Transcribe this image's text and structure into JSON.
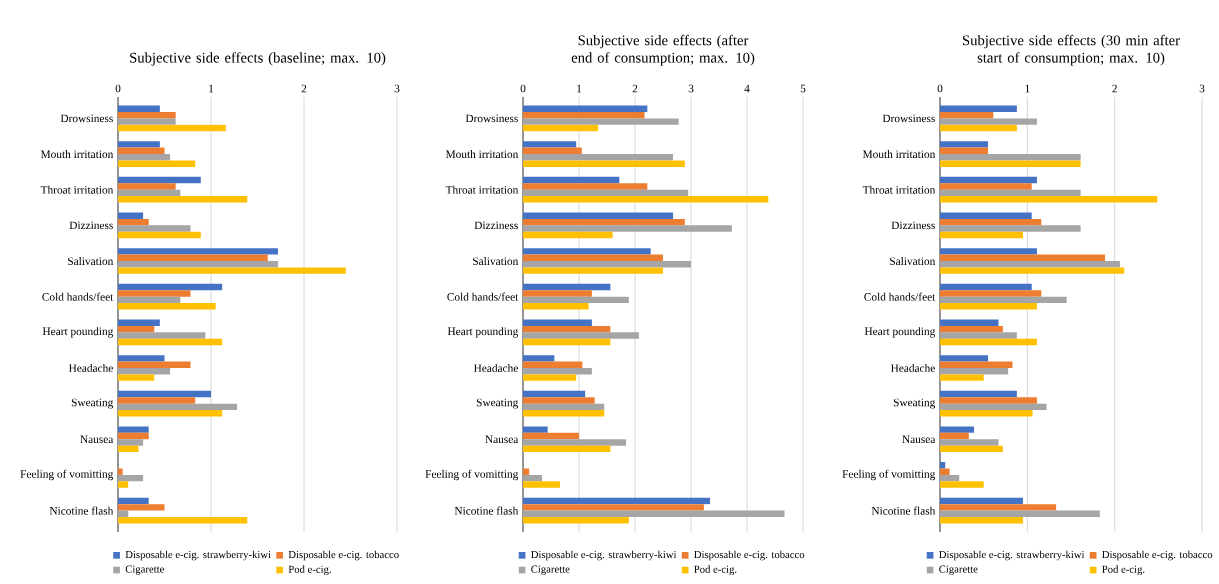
{
  "chart_data": [
    {
      "type": "bar",
      "orientation": "horizontal",
      "title": "Subjective side effects (baseline; max. 10)",
      "categories": [
        "Drowsiness",
        "Mouth irritation",
        "Throat irritation",
        "Dizziness",
        "Salivation",
        "Cold hands/feet",
        "Heart pounding",
        "Headache",
        "Sweating",
        "Nausea",
        "Feeling of vomitting",
        "Nicotine flash"
      ],
      "series": [
        {
          "name": "Disposable e-cig. strawberry-kiwi",
          "color": "#4472c4",
          "values": [
            0.45,
            0.45,
            0.89,
            0.27,
            1.72,
            1.12,
            0.45,
            0.5,
            1.0,
            0.33,
            0,
            0.33
          ]
        },
        {
          "name": "Disposable e-cig. tobacco",
          "color": "#ed7d31",
          "values": [
            0.62,
            0.5,
            0.62,
            0.33,
            1.61,
            0.78,
            0.39,
            0.78,
            0.83,
            0.33,
            0.05,
            0.5
          ]
        },
        {
          "name": "Cigarette",
          "color": "#a5a5a5",
          "values": [
            0.62,
            0.56,
            0.67,
            0.78,
            1.72,
            0.67,
            0.94,
            0.56,
            1.28,
            0.27,
            0.27,
            0.11
          ]
        },
        {
          "name": "Pod e-cig.",
          "color": "#ffc000",
          "values": [
            1.16,
            0.83,
            1.39,
            0.89,
            2.45,
            1.05,
            1.12,
            0.39,
            1.12,
            0.22,
            0.11,
            1.39
          ]
        }
      ],
      "xlim": [
        0,
        3
      ],
      "xticks": [
        0,
        1,
        2,
        3
      ],
      "grid": "x",
      "legend": "bottom"
    },
    {
      "type": "bar",
      "orientation": "horizontal",
      "title": "Subjective side effects (after end of consumption; max. 10)",
      "categories": [
        "Drowsiness",
        "Mouth irritation",
        "Throat irritation",
        "Dizziness",
        "Salivation",
        "Cold hands/feet",
        "Heart pounding",
        "Headache",
        "Sweating",
        "Nausea",
        "Feeling of vomitting",
        "Nicotine flash"
      ],
      "series": [
        {
          "name": "Disposable e-cig. strawberry-kiwi",
          "color": "#4472c4",
          "values": [
            2.22,
            0.95,
            1.72,
            2.68,
            2.28,
            1.56,
            1.23,
            0.56,
            1.11,
            0.44,
            0,
            3.34
          ]
        },
        {
          "name": "Disposable e-cig. tobacco",
          "color": "#ed7d31",
          "values": [
            2.17,
            1.05,
            2.22,
            2.89,
            2.5,
            1.23,
            1.56,
            1.06,
            1.28,
            1.0,
            0.11,
            3.23
          ]
        },
        {
          "name": "Cigarette",
          "color": "#a5a5a5",
          "values": [
            2.78,
            2.68,
            2.95,
            3.73,
            3.0,
            1.89,
            2.07,
            1.23,
            1.45,
            1.84,
            0.34,
            4.67
          ]
        },
        {
          "name": "Pod e-cig.",
          "color": "#ffc000",
          "values": [
            1.34,
            2.89,
            4.38,
            1.6,
            2.5,
            1.17,
            1.56,
            0.95,
            1.45,
            1.56,
            0.66,
            1.89
          ]
        }
      ],
      "xlim": [
        0,
        5
      ],
      "xticks": [
        0,
        1,
        2,
        3,
        4,
        5
      ],
      "grid": "x",
      "legend": "bottom"
    },
    {
      "type": "bar",
      "orientation": "horizontal",
      "title": "Subjective side effects (30 min after start of consumption; max. 10)",
      "categories": [
        "Drowsiness",
        "Mouth irritation",
        "Throat irritation",
        "Dizziness",
        "Salivation",
        "Cold hands/feet",
        "Heart pounding",
        "Headache",
        "Sweating",
        "Nausea",
        "Feeling of vomitting",
        "Nicotine flash"
      ],
      "series": [
        {
          "name": "Disposable e-cig. strawberry-kiwi",
          "color": "#4472c4",
          "values": [
            0.88,
            0.55,
            1.11,
            1.05,
            1.11,
            1.05,
            0.67,
            0.55,
            0.88,
            0.39,
            0.06,
            0.95
          ]
        },
        {
          "name": "Disposable e-cig. tobacco",
          "color": "#ed7d31",
          "values": [
            0.61,
            0.55,
            1.05,
            1.16,
            1.89,
            1.16,
            0.72,
            0.83,
            1.11,
            0.33,
            0.11,
            1.33
          ]
        },
        {
          "name": "Cigarette",
          "color": "#a5a5a5",
          "values": [
            1.11,
            1.61,
            1.61,
            1.61,
            2.06,
            1.45,
            0.88,
            0.78,
            1.22,
            0.67,
            0.22,
            1.83
          ]
        },
        {
          "name": "Pod e-cig.",
          "color": "#ffc000",
          "values": [
            0.88,
            1.61,
            2.49,
            0.95,
            2.11,
            1.11,
            1.11,
            0.5,
            1.06,
            0.72,
            0.5,
            0.95
          ]
        }
      ],
      "xlim": [
        0,
        3
      ],
      "xticks": [
        0,
        1,
        2,
        3
      ],
      "grid": "x",
      "legend": "bottom"
    }
  ]
}
